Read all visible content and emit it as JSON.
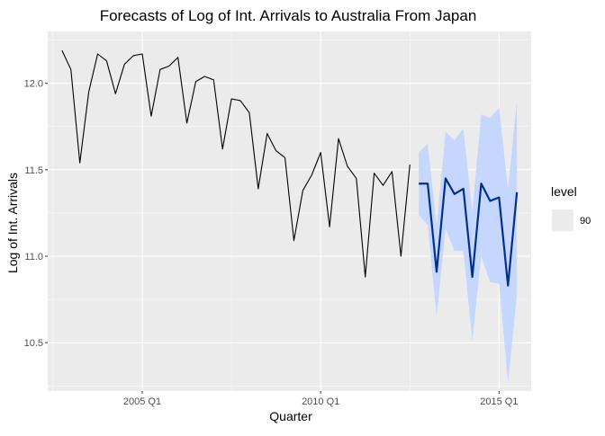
{
  "chart_data": {
    "type": "line",
    "title": "Forecasts of Log of Int. Arrivals to Australia From Japan",
    "xlabel": "Quarter",
    "ylabel": "Log of Int. Arrivals",
    "x_ticks": [
      {
        "label": "2005 Q1",
        "value": 2005.0
      },
      {
        "label": "2010 Q1",
        "value": 2010.0
      },
      {
        "label": "2015 Q1",
        "value": 2015.0
      }
    ],
    "y_ticks": [
      {
        "label": "10.5",
        "value": 10.5
      },
      {
        "label": "11.0",
        "value": 11.0
      },
      {
        "label": "11.5",
        "value": 11.5
      },
      {
        "label": "12.0",
        "value": 12.0
      }
    ],
    "xlim": [
      2002.35,
      2015.9
    ],
    "ylim": [
      10.22,
      12.3
    ],
    "grid": true,
    "legend": {
      "title": "level",
      "entries": [
        "90"
      ],
      "position": "right"
    },
    "colors": {
      "panel_bg": "#EBEBEB",
      "grid": "#FFFFFF",
      "observed": "#000000",
      "forecast": "#00308F",
      "interval": "#C6D7FF"
    },
    "series": [
      {
        "name": "",
        "role": "observed",
        "points": [
          [
            2002.75,
            12.19
          ],
          [
            2003.0,
            12.08
          ],
          [
            2003.25,
            11.54
          ],
          [
            2003.5,
            11.95
          ],
          [
            2003.75,
            12.17
          ],
          [
            2004.0,
            12.13
          ],
          [
            2004.25,
            11.94
          ],
          [
            2004.5,
            12.11
          ],
          [
            2004.75,
            12.16
          ],
          [
            2005.0,
            12.17
          ],
          [
            2005.25,
            11.81
          ],
          [
            2005.5,
            12.08
          ],
          [
            2005.75,
            12.1
          ],
          [
            2006.0,
            12.15
          ],
          [
            2006.25,
            11.77
          ],
          [
            2006.5,
            12.01
          ],
          [
            2006.75,
            12.04
          ],
          [
            2007.0,
            12.02
          ],
          [
            2007.25,
            11.62
          ],
          [
            2007.5,
            11.91
          ],
          [
            2007.75,
            11.9
          ],
          [
            2008.0,
            11.83
          ],
          [
            2008.25,
            11.39
          ],
          [
            2008.5,
            11.71
          ],
          [
            2008.75,
            11.61
          ],
          [
            2009.0,
            11.57
          ],
          [
            2009.25,
            11.09
          ],
          [
            2009.5,
            11.38
          ],
          [
            2009.75,
            11.47
          ],
          [
            2010.0,
            11.6
          ],
          [
            2010.25,
            11.17
          ],
          [
            2010.5,
            11.68
          ],
          [
            2010.75,
            11.52
          ],
          [
            2011.0,
            11.45
          ],
          [
            2011.25,
            10.88
          ],
          [
            2011.5,
            11.48
          ],
          [
            2011.75,
            11.41
          ],
          [
            2012.0,
            11.49
          ],
          [
            2012.25,
            11.0
          ],
          [
            2012.5,
            11.53
          ]
        ]
      },
      {
        "name": "",
        "role": "forecast",
        "points": [
          [
            2012.75,
            11.42
          ],
          [
            2013.0,
            11.42
          ],
          [
            2013.25,
            10.91
          ],
          [
            2013.5,
            11.45
          ],
          [
            2013.75,
            11.36
          ],
          [
            2014.0,
            11.39
          ],
          [
            2014.25,
            10.88
          ],
          [
            2014.5,
            11.42
          ],
          [
            2014.75,
            11.32
          ],
          [
            2015.0,
            11.34
          ],
          [
            2015.25,
            10.83
          ],
          [
            2015.5,
            11.37
          ]
        ],
        "lower_90": [
          11.24,
          11.18,
          10.65,
          11.16,
          11.03,
          11.03,
          10.51,
          11.0,
          10.85,
          10.84,
          10.27,
          10.77
        ],
        "upper_90": [
          11.6,
          11.65,
          11.18,
          11.72,
          11.67,
          11.74,
          11.26,
          11.82,
          11.8,
          11.86,
          11.39,
          11.9
        ]
      }
    ]
  }
}
